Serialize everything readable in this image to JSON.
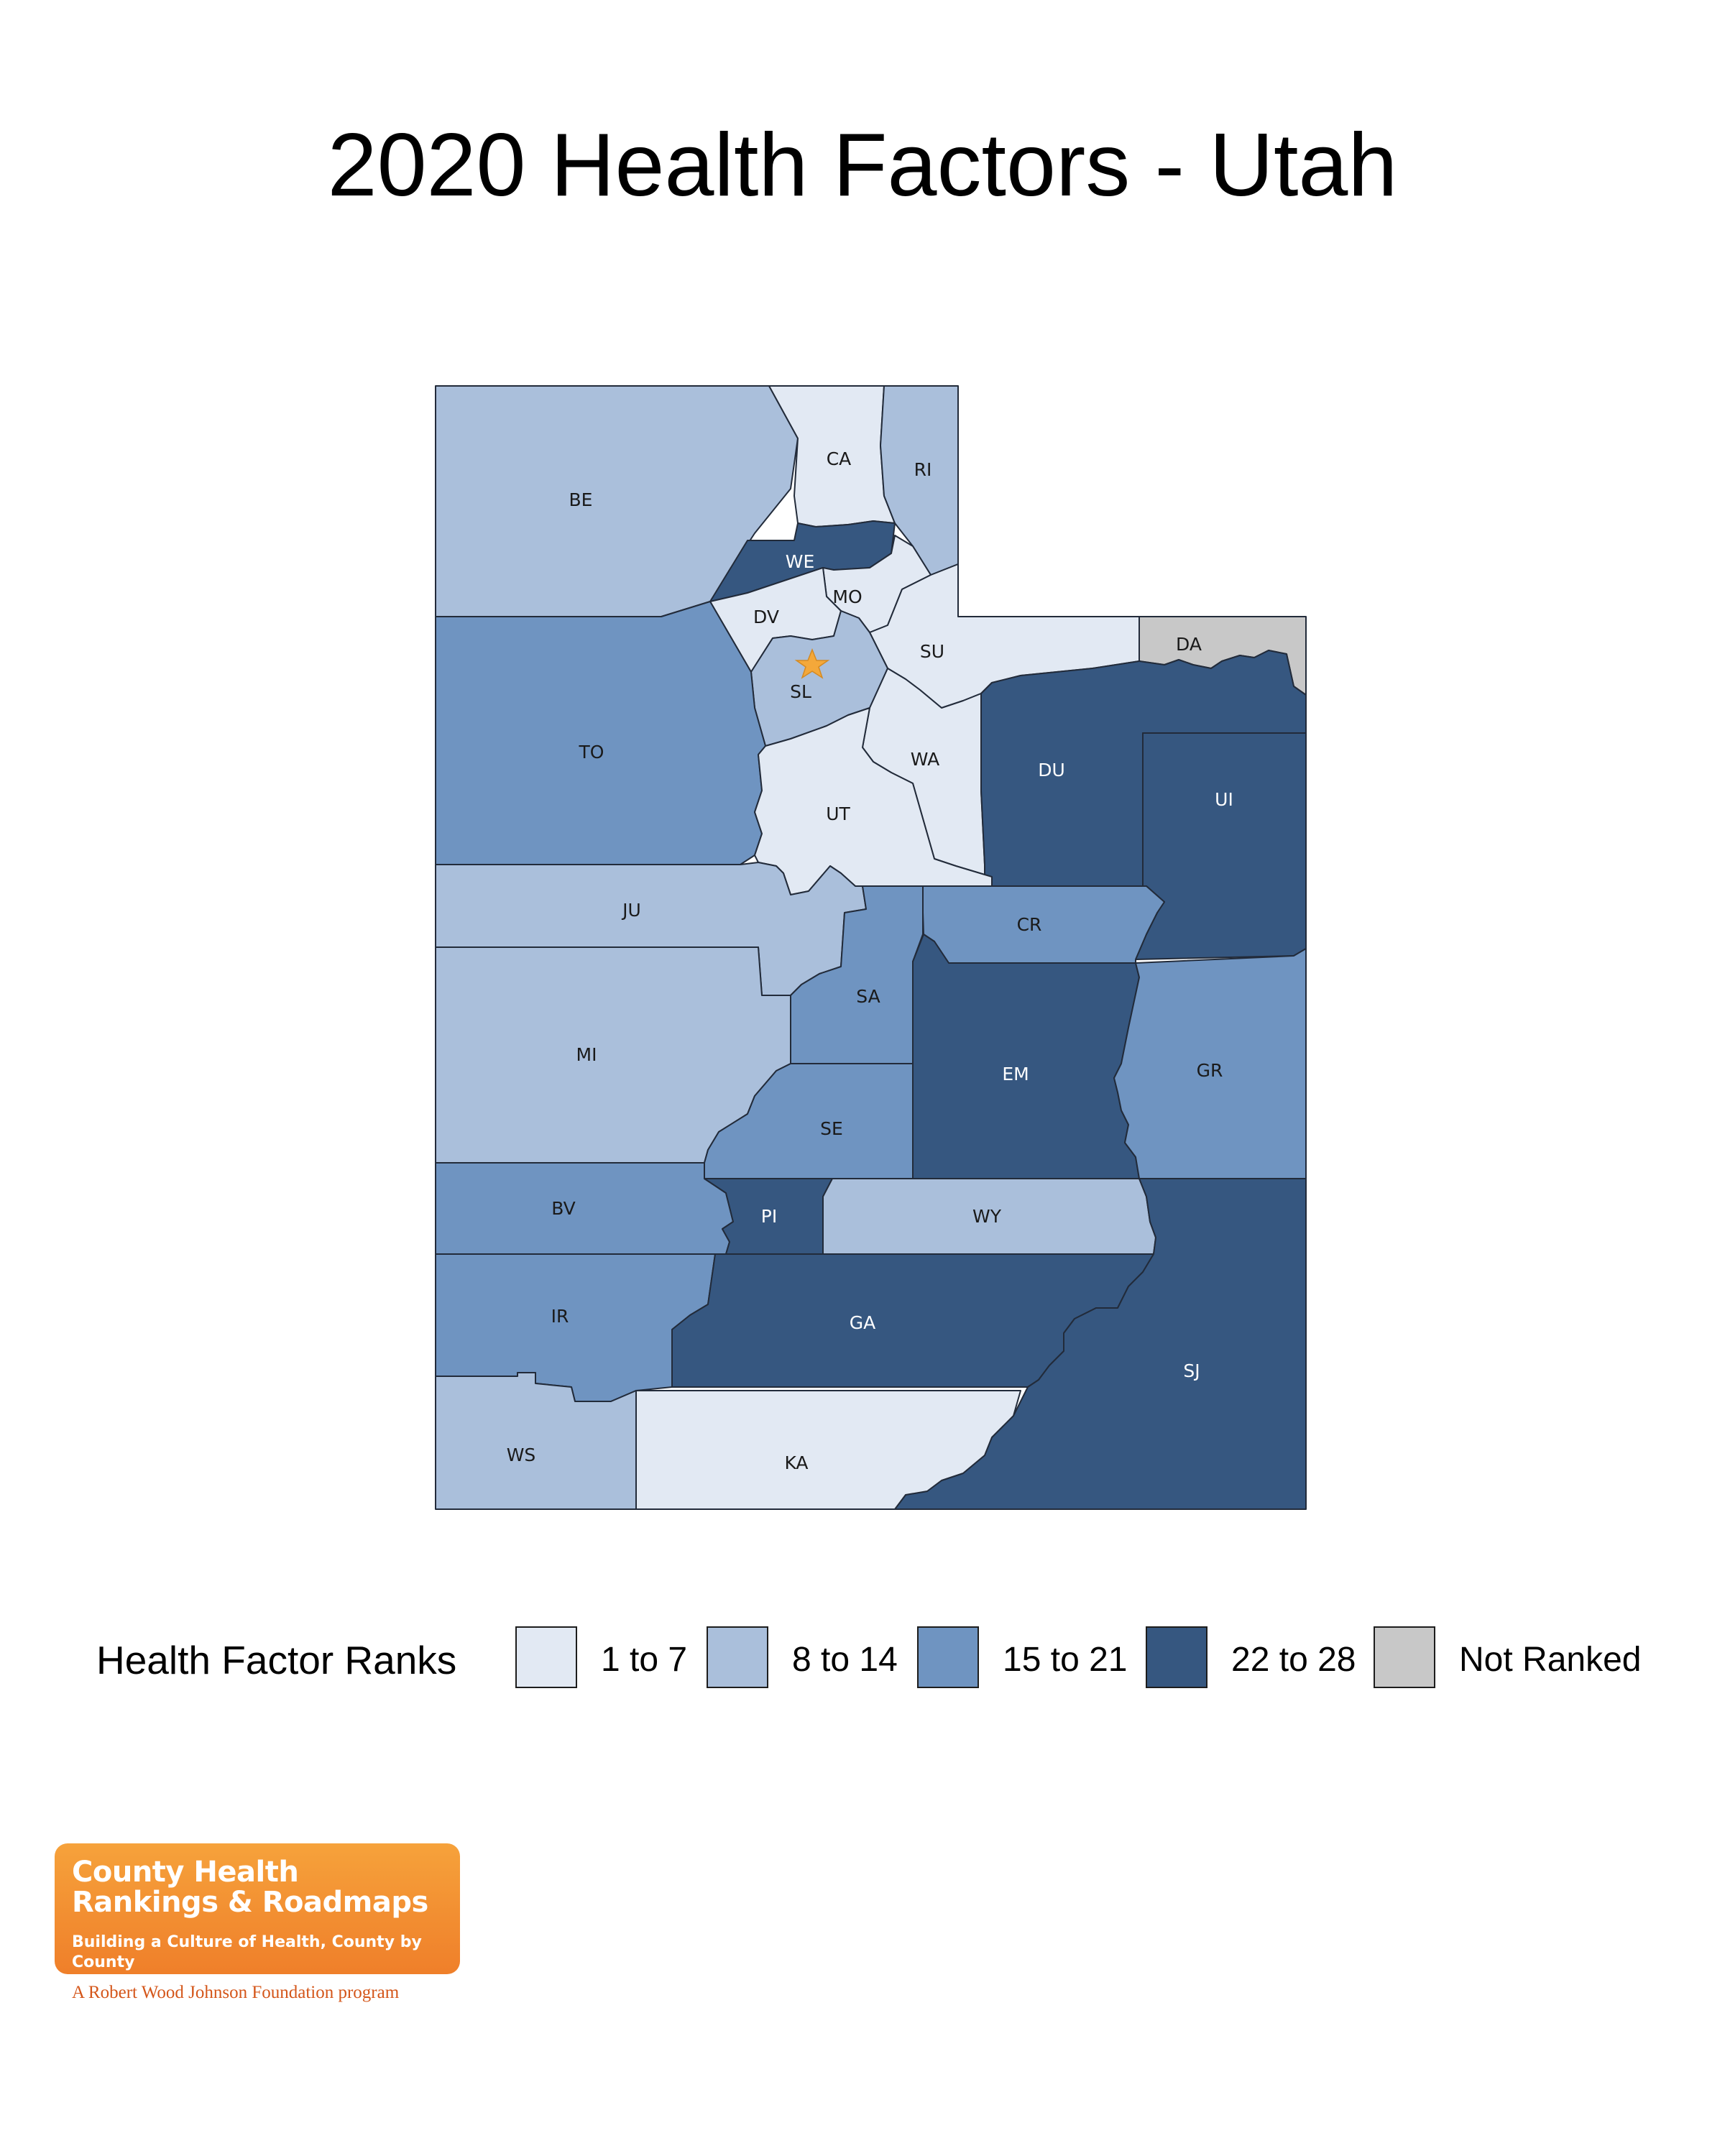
{
  "title": "2020 Health Factors - Utah",
  "legend": {
    "title": "Health Factor Ranks",
    "items": [
      {
        "label": "1 to 7",
        "color": "#e2e9f3"
      },
      {
        "label": "8 to 14",
        "color": "#aabfdb"
      },
      {
        "label": "15 to 21",
        "color": "#6f94c1"
      },
      {
        "label": "22 to 28",
        "color": "#365780"
      },
      {
        "label": "Not Ranked",
        "color": "#c8c8c8"
      }
    ]
  },
  "map": {
    "state": "Utah",
    "capital_marker": "star",
    "capital_color": "#f4a83a",
    "counties": [
      {
        "abbr": "BE",
        "rank_class": "8 to 14"
      },
      {
        "abbr": "CA",
        "rank_class": "1 to 7"
      },
      {
        "abbr": "RI",
        "rank_class": "8 to 14"
      },
      {
        "abbr": "WE",
        "rank_class": "22 to 28"
      },
      {
        "abbr": "MO",
        "rank_class": "1 to 7"
      },
      {
        "abbr": "DV",
        "rank_class": "1 to 7"
      },
      {
        "abbr": "SU",
        "rank_class": "1 to 7"
      },
      {
        "abbr": "DA",
        "rank_class": "Not Ranked"
      },
      {
        "abbr": "SL",
        "rank_class": "8 to 14"
      },
      {
        "abbr": "TO",
        "rank_class": "15 to 21"
      },
      {
        "abbr": "WA",
        "rank_class": "1 to 7"
      },
      {
        "abbr": "DU",
        "rank_class": "22 to 28"
      },
      {
        "abbr": "UI",
        "rank_class": "22 to 28"
      },
      {
        "abbr": "UT",
        "rank_class": "1 to 7"
      },
      {
        "abbr": "JU",
        "rank_class": "8 to 14"
      },
      {
        "abbr": "CR",
        "rank_class": "15 to 21"
      },
      {
        "abbr": "SA",
        "rank_class": "15 to 21"
      },
      {
        "abbr": "MI",
        "rank_class": "8 to 14"
      },
      {
        "abbr": "EM",
        "rank_class": "22 to 28"
      },
      {
        "abbr": "GR",
        "rank_class": "15 to 21"
      },
      {
        "abbr": "SE",
        "rank_class": "15 to 21"
      },
      {
        "abbr": "BV",
        "rank_class": "15 to 21"
      },
      {
        "abbr": "PI",
        "rank_class": "22 to 28"
      },
      {
        "abbr": "WY",
        "rank_class": "8 to 14"
      },
      {
        "abbr": "IR",
        "rank_class": "15 to 21"
      },
      {
        "abbr": "GA",
        "rank_class": "22 to 28"
      },
      {
        "abbr": "SJ",
        "rank_class": "22 to 28"
      },
      {
        "abbr": "WS",
        "rank_class": "8 to 14"
      },
      {
        "abbr": "KA",
        "rank_class": "1 to 7"
      }
    ]
  },
  "logo": {
    "line1": "County Health",
    "line2": "Rankings & Roadmaps",
    "tagline": "Building a Culture of Health, County by County",
    "program": "A Robert Wood Johnson Foundation program"
  }
}
